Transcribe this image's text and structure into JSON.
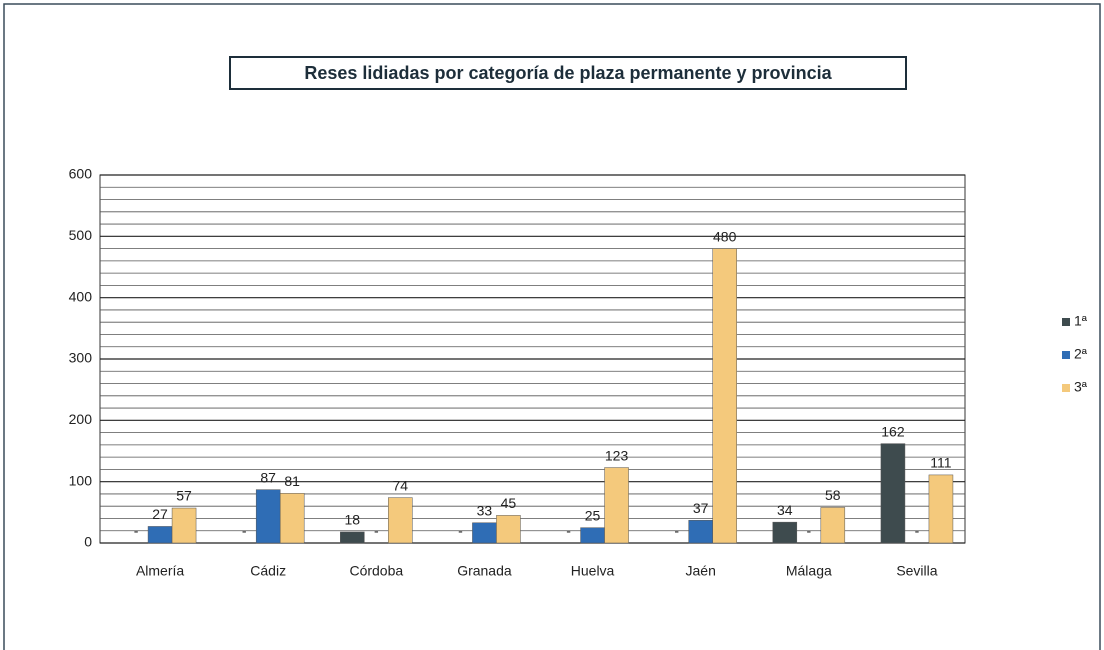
{
  "chart_data": {
    "type": "bar",
    "title": "Reses lidiadas por categoría de plaza permanente y provincia",
    "categories": [
      "Almería",
      "Cádiz",
      "Córdoba",
      "Granada",
      "Huelva",
      "Jaén",
      "Málaga",
      "Sevilla"
    ],
    "series": [
      {
        "name": "1ª",
        "color": "#3e4b4e",
        "values": [
          0,
          0,
          18,
          0,
          0,
          0,
          34,
          162
        ],
        "value_labels": [
          "-",
          "-",
          "18",
          "-",
          "-",
          "-",
          "34",
          "162"
        ]
      },
      {
        "name": "2ª",
        "color": "#2f6db5",
        "values": [
          27,
          87,
          0,
          33,
          25,
          37,
          0,
          0
        ],
        "value_labels": [
          "27",
          "87",
          "-",
          "33",
          "25",
          "37",
          "-",
          "-"
        ]
      },
      {
        "name": "3ª",
        "color": "#f4c97c",
        "values": [
          57,
          81,
          74,
          45,
          123,
          480,
          58,
          111
        ],
        "value_labels": [
          "57",
          "81",
          "74",
          "45",
          "123",
          "480",
          "58",
          "111"
        ]
      }
    ],
    "ylim": [
      0,
      600
    ],
    "yticks": [
      0,
      100,
      200,
      300,
      400,
      500,
      600
    ],
    "minor_yticks": [
      20,
      40,
      60,
      80,
      120,
      140,
      160,
      180,
      220,
      240,
      260,
      280,
      320,
      340,
      360,
      380,
      420,
      440,
      460,
      480,
      520,
      540,
      560,
      580
    ],
    "grid": true,
    "legend": "right"
  }
}
